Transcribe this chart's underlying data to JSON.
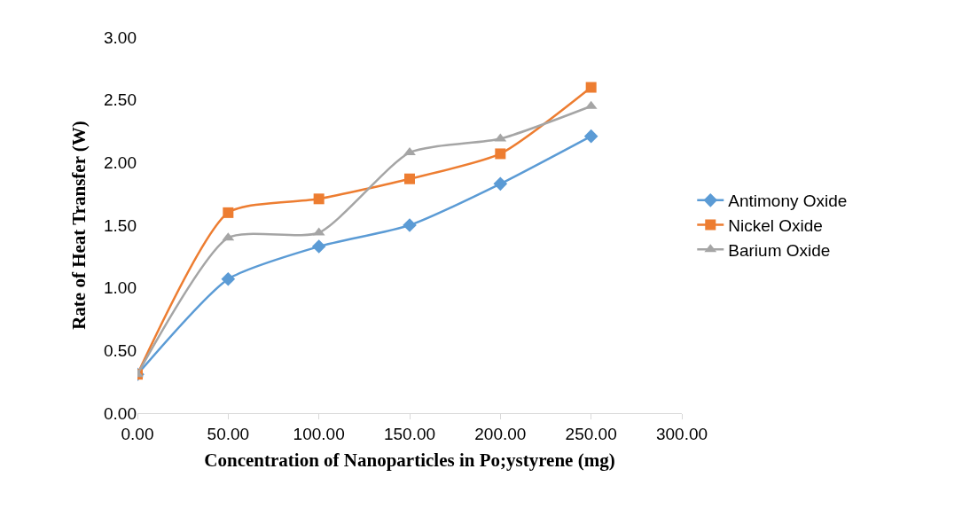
{
  "chart_data": {
    "type": "line",
    "xlabel": "Concentration of Nanoparticles in Po;ystyrene (mg)",
    "ylabel": "Rate of Heat Transfer (W)",
    "x": [
      0,
      50,
      100,
      150,
      200,
      250
    ],
    "series": [
      {
        "name": "Antimony Oxide",
        "color": "#5b9bd5",
        "marker": "diamond",
        "values": [
          0.31,
          1.07,
          1.33,
          1.5,
          1.83,
          2.21
        ]
      },
      {
        "name": "Nickel Oxide",
        "color": "#ed7d31",
        "marker": "square",
        "values": [
          0.31,
          1.6,
          1.71,
          1.87,
          2.07,
          2.6
        ]
      },
      {
        "name": "Barium Oxide",
        "color": "#a5a5a5",
        "marker": "triangle",
        "values": [
          0.31,
          1.4,
          1.44,
          2.08,
          2.19,
          2.45
        ]
      }
    ],
    "xlim": [
      0,
      300
    ],
    "xticks": [
      {
        "value": 0,
        "label": "0.00"
      },
      {
        "value": 50,
        "label": "50.00"
      },
      {
        "value": 100,
        "label": "100.00"
      },
      {
        "value": 150,
        "label": "150.00"
      },
      {
        "value": 200,
        "label": "200.00"
      },
      {
        "value": 250,
        "label": "250.00"
      },
      {
        "value": 300,
        "label": "300.00"
      }
    ],
    "ylim": [
      0,
      3
    ],
    "yticks": [
      {
        "value": 0,
        "label": "0.00"
      },
      {
        "value": 0.5,
        "label": "0.50"
      },
      {
        "value": 1,
        "label": "1.00"
      },
      {
        "value": 1.5,
        "label": "1.50"
      },
      {
        "value": 2,
        "label": "2.00"
      },
      {
        "value": 2.5,
        "label": "2.50"
      },
      {
        "value": 3,
        "label": "3.00"
      }
    ],
    "grid": false,
    "legend": "right"
  }
}
